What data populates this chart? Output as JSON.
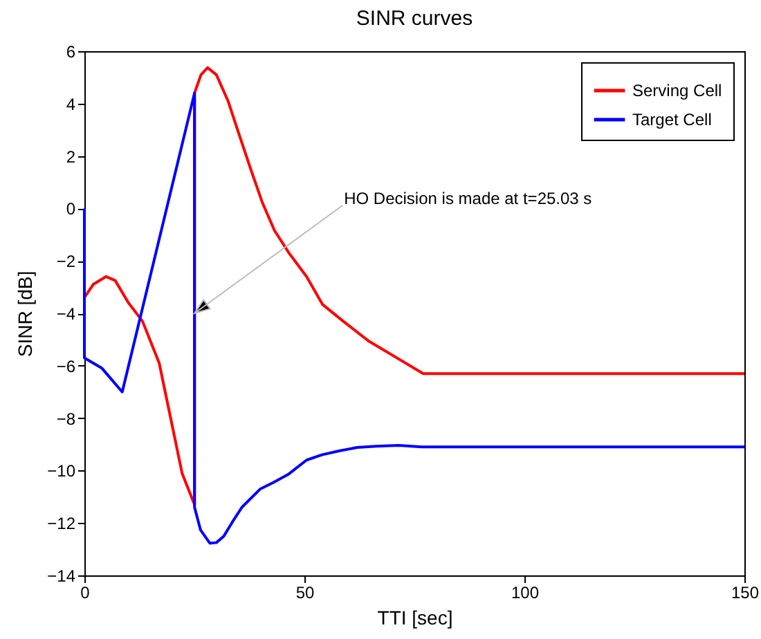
{
  "chart_data": {
    "type": "line",
    "title": "SINR curves",
    "xlabel": "TTI [sec]",
    "ylabel": "SINR [dB]",
    "xlim": [
      0,
      150
    ],
    "xticks": [
      0,
      50,
      100,
      150
    ],
    "ylim": [
      -14,
      6
    ],
    "yticks": [
      -14,
      -12,
      -10,
      -8,
      -6,
      -4,
      -2,
      0,
      2,
      4,
      6
    ],
    "grid": false,
    "legend": "top right",
    "line_style": "solid",
    "marker": "none",
    "annotations": [
      {
        "text": "HO Decision is made at t=25.03 s",
        "x": 25.03,
        "y": -4
      }
    ],
    "series": [
      {
        "name": "Serving Cell",
        "color": "#ff0000",
        "x": [
          0,
          2,
          4.9,
          7,
          10,
          13.2,
          17,
          20.1,
          22.2,
          25.03,
          25.03,
          26.5,
          28,
          30,
          32.7,
          35,
          37.9,
          40.5,
          43.2,
          46.5,
          50.5,
          54.1,
          58.8,
          64.7,
          70,
          77,
          150
        ],
        "values": [
          -3.4,
          -2.9,
          -2.6,
          -2.75,
          -3.6,
          -4.3,
          -5.9,
          -8.4,
          -10.1,
          -11.3,
          4.4,
          5.1,
          5.37,
          5.1,
          4.08,
          2.9,
          1.45,
          0.2,
          -0.84,
          -1.7,
          -2.6,
          -3.66,
          -4.3,
          -5.07,
          -5.6,
          -6.3,
          -6.3
        ]
      },
      {
        "name": "Target Cell",
        "color": "#0000ff",
        "x": [
          0,
          0,
          4,
          8.6,
          25.03,
          25.03,
          26.4,
          28.5,
          30,
          31.7,
          33.5,
          35.8,
          40,
          43,
          46.3,
          50.5,
          54,
          57.9,
          62,
          66.3,
          71.4,
          76.7,
          150
        ],
        "values": [
          0,
          -5.7,
          -6.1,
          -7,
          4.4,
          -11.4,
          -12.27,
          -12.77,
          -12.75,
          -12.5,
          -12,
          -11.4,
          -10.7,
          -10.45,
          -10.15,
          -9.6,
          -9.4,
          -9.25,
          -9.12,
          -9.07,
          -9.04,
          -9.1,
          -9.1
        ]
      }
    ]
  }
}
